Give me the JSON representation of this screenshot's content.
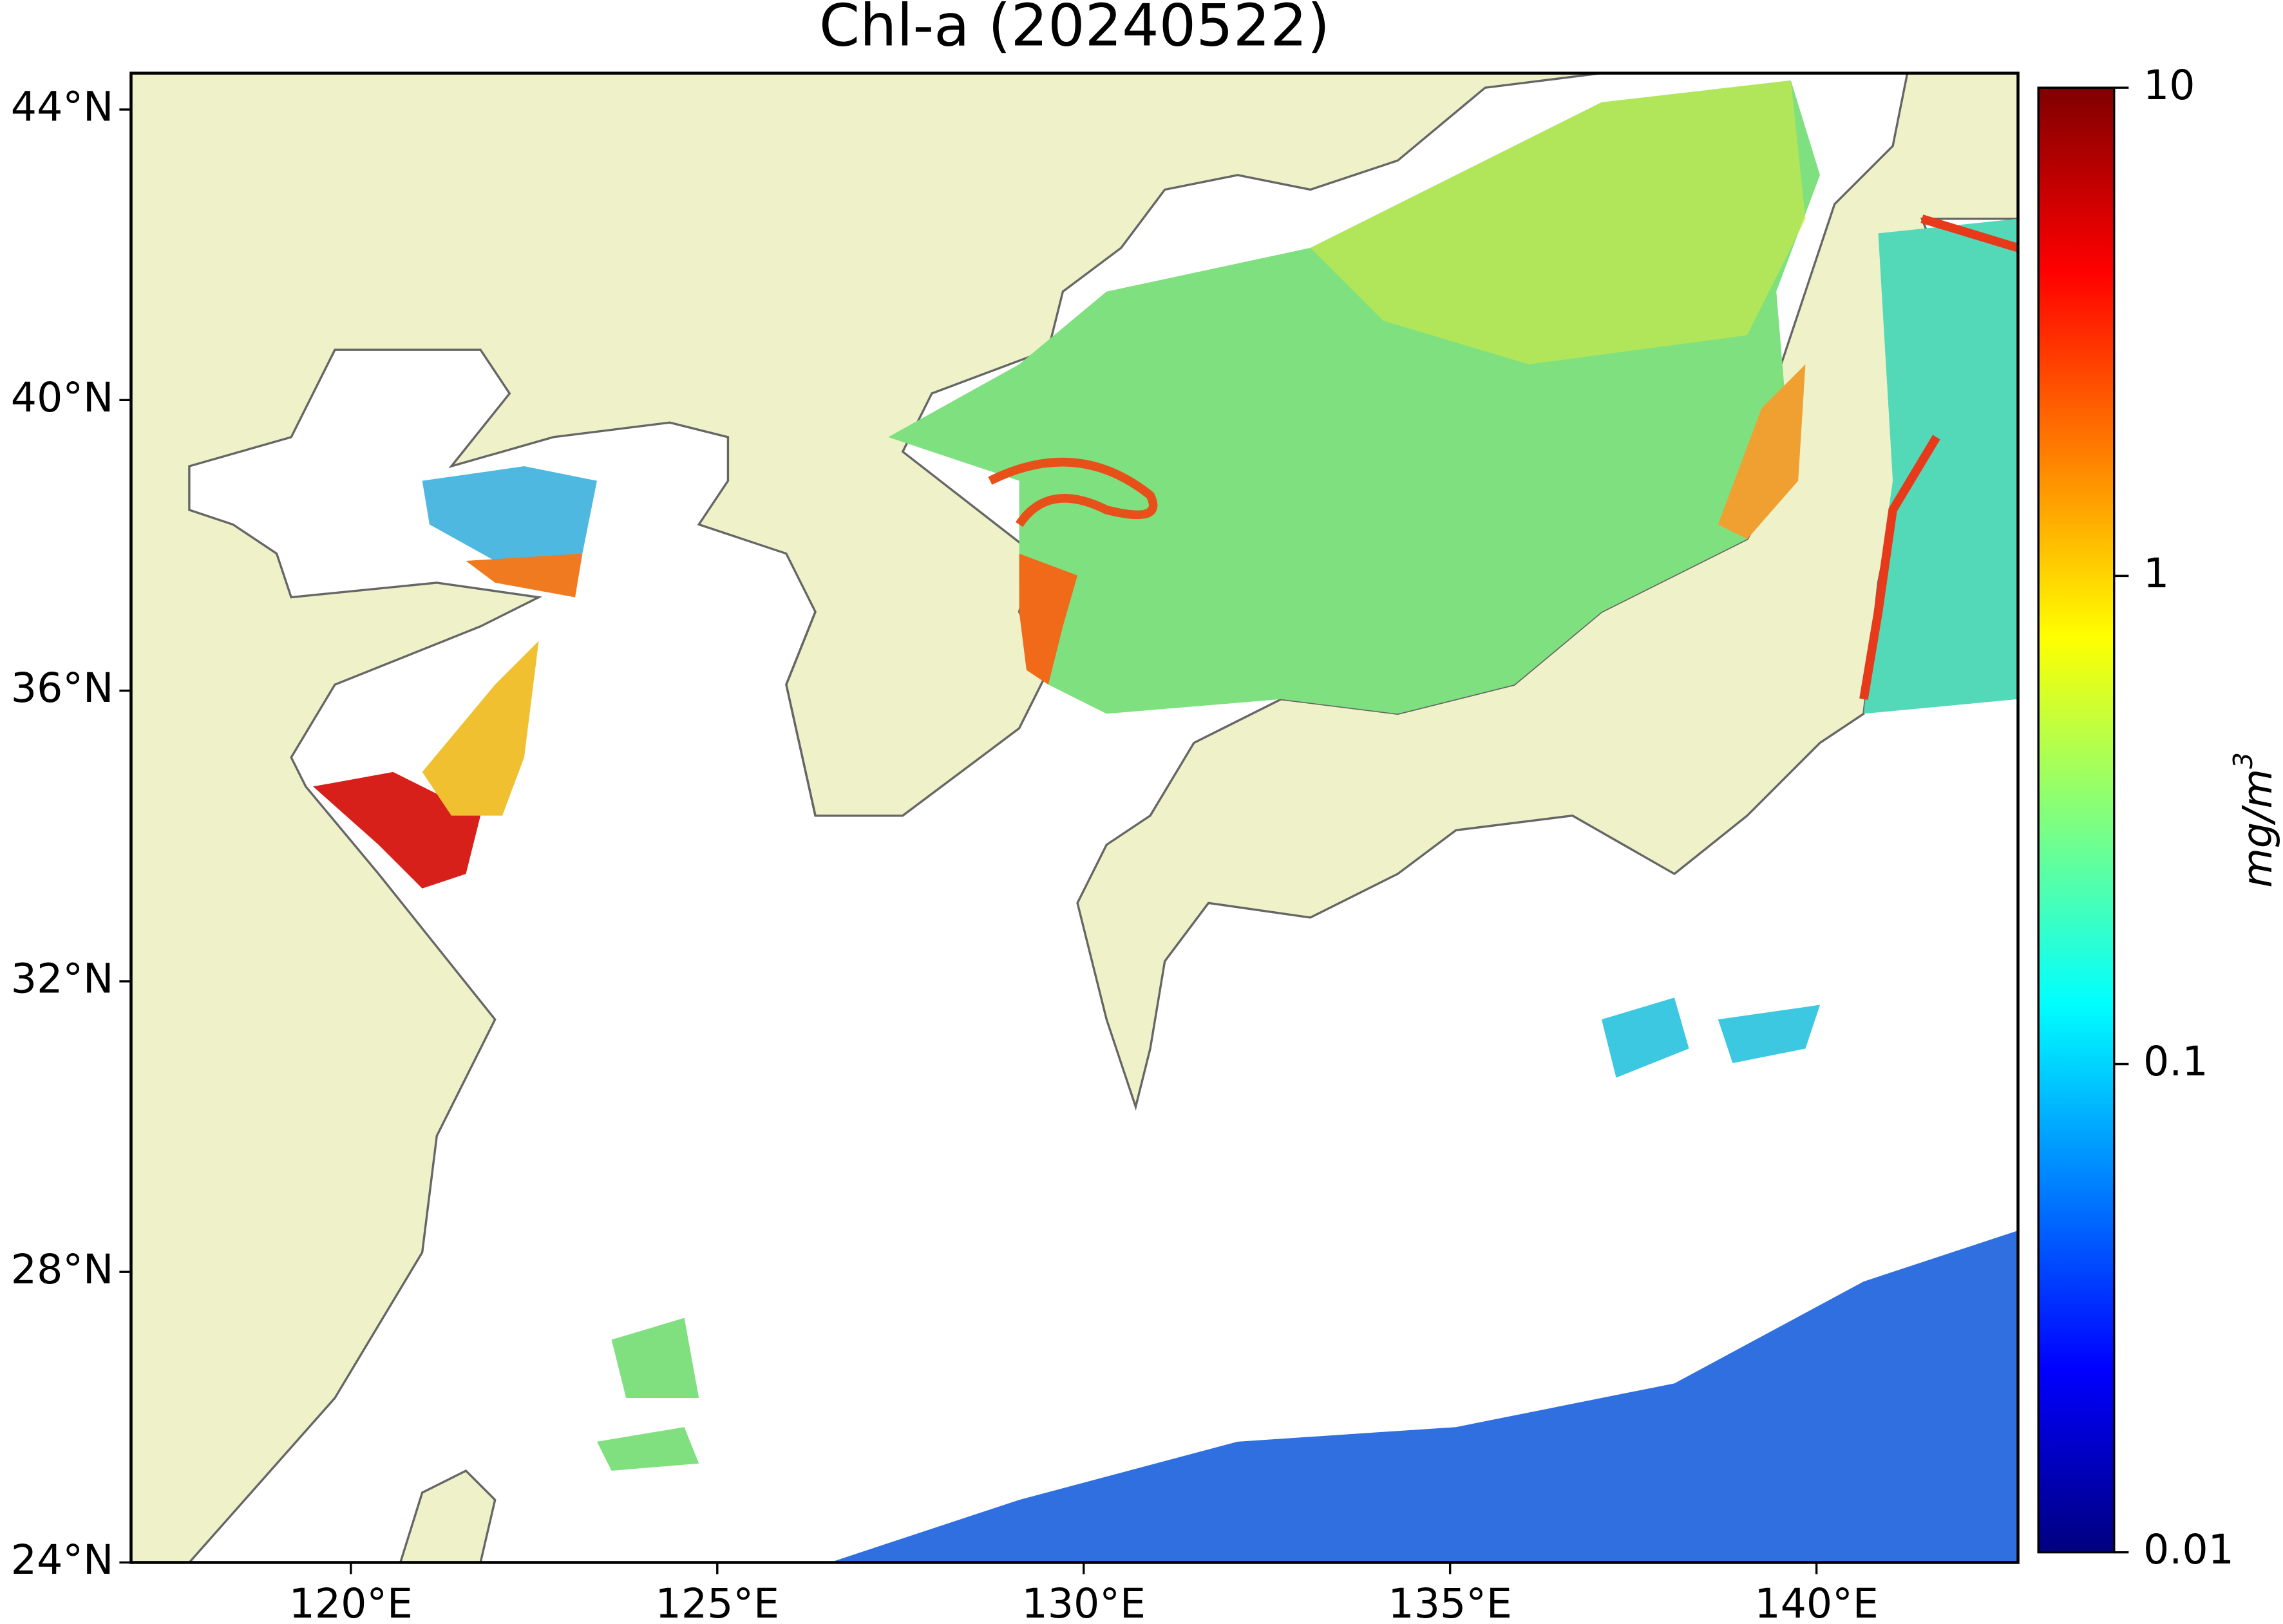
{
  "title": "Chl-a (20240522)",
  "map": {
    "xlim": [
      117,
      142.75
    ],
    "ylim": [
      24,
      44.5
    ],
    "xticks": [
      {
        "value": 120,
        "label": "120°E"
      },
      {
        "value": 125,
        "label": "125°E"
      },
      {
        "value": 130,
        "label": "130°E"
      },
      {
        "value": 135,
        "label": "135°E"
      },
      {
        "value": 140,
        "label": "140°E"
      }
    ],
    "yticks": [
      {
        "value": 24,
        "label": "24°N"
      },
      {
        "value": 28,
        "label": "28°N"
      },
      {
        "value": 32,
        "label": "32°N"
      },
      {
        "value": 36,
        "label": "36°N"
      },
      {
        "value": 40,
        "label": "40°N"
      },
      {
        "value": 44,
        "label": "44°N"
      }
    ]
  },
  "colorbar": {
    "scale": "log",
    "colormap": "jet",
    "lim": [
      0.01,
      10
    ],
    "ticks": [
      0.01,
      0.1,
      1,
      10
    ],
    "label": "mg/m",
    "label_sup": "3"
  }
}
